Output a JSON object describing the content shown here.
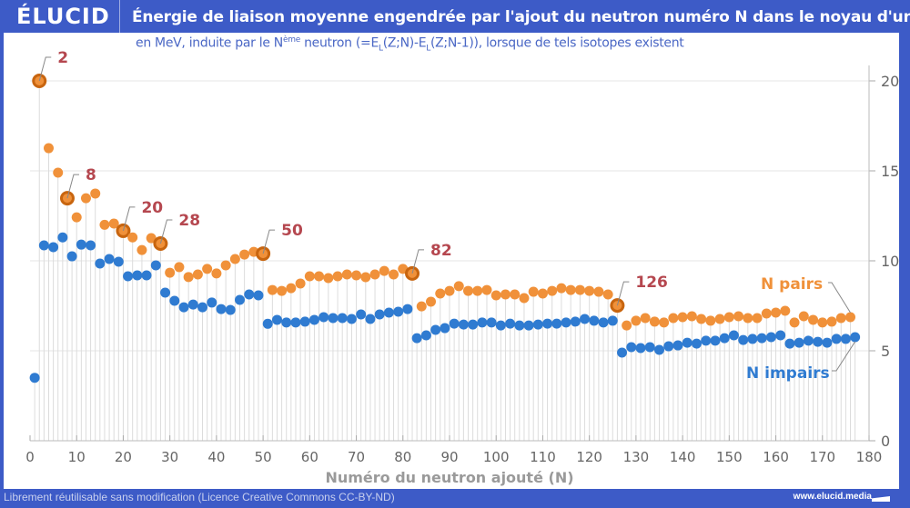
{
  "header": {
    "logo": "ÉLUCID",
    "title": "Énergie de liaison moyenne engendrée par l'ajout du neutron numéro N dans le noyau d'un atome"
  },
  "subtitle": {
    "part1": "en MeV, induite par le N",
    "sup": "ème",
    "part2": " neutron (=E",
    "sub1": "L",
    "part3": "(Z;N)-E",
    "sub2": "L",
    "part4": "(Z;N-1)), lorsque de tels isotopes existent"
  },
  "footer": {
    "license": "Librement réutilisable sans modification (Licence Creative Commons CC-BY-ND)",
    "site": "www.elucid.media"
  },
  "colors": {
    "even": "#f0913a",
    "odd": "#2f7bd1",
    "magic": "#c8650f",
    "magic_label": "#b5474f",
    "brand": "#3d5bc7"
  },
  "chart_data": {
    "type": "scatter",
    "title": "Énergie de liaison moyenne engendrée par l'ajout du neutron numéro N dans le noyau d'un atome",
    "subtitle": "en MeV, induite par le Nème neutron (=EL(Z;N)-EL(Z;N-1)), lorsque de tels isotopes existent",
    "xlabel": "Numéro du neutron ajouté (N)",
    "ylabel": "",
    "xlim": [
      0,
      180
    ],
    "ylim": [
      0,
      21
    ],
    "x_ticks": [
      "0",
      "10",
      "20",
      "30",
      "40",
      "50",
      "60",
      "70",
      "80",
      "90",
      "100",
      "110",
      "120",
      "130",
      "140",
      "150",
      "160",
      "170",
      "180"
    ],
    "y_ticks": [
      "0",
      "5",
      "10",
      "15",
      "20"
    ],
    "grid": true,
    "magic_numbers": [
      2,
      8,
      20,
      28,
      50,
      82,
      126
    ],
    "series": [
      {
        "name": "N pairs",
        "x": [
          2,
          4,
          6,
          8,
          10,
          12,
          14,
          16,
          18,
          20,
          22,
          24,
          26,
          28,
          30,
          32,
          34,
          36,
          38,
          40,
          42,
          44,
          46,
          48,
          50,
          52,
          54,
          56,
          58,
          60,
          62,
          64,
          66,
          68,
          70,
          72,
          74,
          76,
          78,
          80,
          82,
          84,
          86,
          88,
          90,
          92,
          94,
          96,
          98,
          100,
          102,
          104,
          106,
          108,
          110,
          112,
          114,
          116,
          118,
          120,
          122,
          124,
          126,
          128,
          130,
          132,
          134,
          136,
          138,
          140,
          142,
          144,
          146,
          148,
          150,
          152,
          154,
          156,
          158,
          160,
          162,
          164,
          166,
          168,
          170,
          172,
          174,
          176
        ],
        "values": [
          20.0,
          16.26,
          14.9,
          13.48,
          12.42,
          13.48,
          13.74,
          12.0,
          12.07,
          11.67,
          11.3,
          10.6,
          11.26,
          10.96,
          9.34,
          9.65,
          9.1,
          9.24,
          9.55,
          9.3,
          9.75,
          10.1,
          10.35,
          10.5,
          10.4,
          8.38,
          8.33,
          8.48,
          8.74,
          9.14,
          9.14,
          9.04,
          9.14,
          9.24,
          9.19,
          9.09,
          9.24,
          9.44,
          9.24,
          9.55,
          9.3,
          7.47,
          7.73,
          8.18,
          8.33,
          8.59,
          8.33,
          8.33,
          8.38,
          8.08,
          8.13,
          8.13,
          7.93,
          8.28,
          8.18,
          8.33,
          8.48,
          8.38,
          8.38,
          8.33,
          8.28,
          8.13,
          7.52,
          6.41,
          6.67,
          6.82,
          6.62,
          6.57,
          6.82,
          6.87,
          6.92,
          6.77,
          6.67,
          6.77,
          6.87,
          6.92,
          6.82,
          6.82,
          7.07,
          7.12,
          7.22,
          6.57,
          6.92,
          6.72,
          6.57,
          6.62,
          6.82,
          6.87
        ]
      },
      {
        "name": "N impairs",
        "x": [
          1,
          3,
          5,
          7,
          9,
          11,
          13,
          15,
          17,
          19,
          21,
          23,
          25,
          27,
          29,
          31,
          33,
          35,
          37,
          39,
          41,
          43,
          45,
          47,
          49,
          51,
          53,
          55,
          57,
          59,
          61,
          63,
          65,
          67,
          69,
          71,
          73,
          75,
          77,
          79,
          81,
          83,
          85,
          87,
          89,
          91,
          93,
          95,
          97,
          99,
          101,
          103,
          105,
          107,
          109,
          111,
          113,
          115,
          117,
          119,
          121,
          123,
          125,
          127,
          129,
          131,
          133,
          135,
          137,
          139,
          141,
          143,
          145,
          147,
          149,
          151,
          153,
          155,
          157,
          159,
          161,
          163,
          165,
          167,
          169,
          171,
          173,
          175,
          177
        ],
        "values": [
          3.5,
          10.86,
          10.76,
          11.3,
          10.25,
          10.9,
          10.86,
          9.85,
          10.1,
          9.95,
          9.14,
          9.19,
          9.19,
          9.75,
          8.23,
          7.78,
          7.42,
          7.57,
          7.42,
          7.68,
          7.32,
          7.27,
          7.83,
          8.13,
          8.08,
          6.5,
          6.72,
          6.57,
          6.57,
          6.62,
          6.72,
          6.87,
          6.82,
          6.82,
          6.77,
          7.02,
          6.77,
          7.02,
          7.12,
          7.17,
          7.32,
          5.7,
          5.86,
          6.16,
          6.26,
          6.51,
          6.46,
          6.46,
          6.57,
          6.57,
          6.41,
          6.51,
          6.41,
          6.41,
          6.46,
          6.51,
          6.51,
          6.57,
          6.62,
          6.77,
          6.67,
          6.57,
          6.67,
          4.9,
          5.2,
          5.15,
          5.2,
          5.05,
          5.25,
          5.3,
          5.45,
          5.4,
          5.56,
          5.56,
          5.7,
          5.86,
          5.6,
          5.66,
          5.7,
          5.76,
          5.86,
          5.4,
          5.45,
          5.56,
          5.5,
          5.45,
          5.66,
          5.66,
          5.76
        ]
      }
    ],
    "legend": [
      {
        "label": "N pairs",
        "position": "right"
      },
      {
        "label": "N impairs",
        "position": "bottom-right"
      }
    ]
  }
}
